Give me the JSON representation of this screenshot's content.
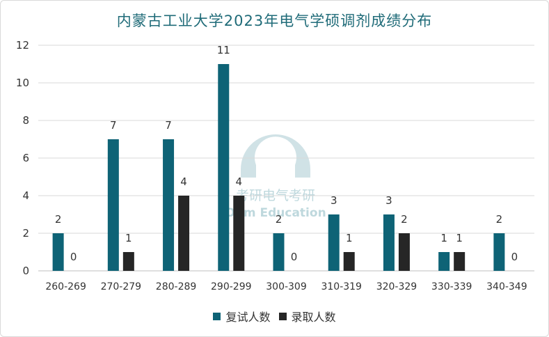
{
  "chart_data": {
    "type": "bar",
    "title": "内蒙古工业大学2023年电气学硕调剂成绩分布",
    "categories": [
      "260-269",
      "270-279",
      "280-289",
      "290-299",
      "300-309",
      "310-319",
      "320-329",
      "330-339",
      "340-349"
    ],
    "series": [
      {
        "name": "复试人数",
        "values": [
          2,
          7,
          7,
          11,
          2,
          3,
          3,
          1,
          2
        ],
        "color": "#0e6376"
      },
      {
        "name": "录取人数",
        "values": [
          0,
          1,
          4,
          4,
          0,
          1,
          2,
          1,
          0
        ],
        "color": "#262626"
      }
    ],
    "ylim": [
      0,
      12
    ],
    "yticks": [
      0,
      2,
      4,
      6,
      8,
      10,
      12
    ],
    "grid": true,
    "legend_position": "bottom",
    "watermark": "考研电气考研 Ohm Education"
  }
}
